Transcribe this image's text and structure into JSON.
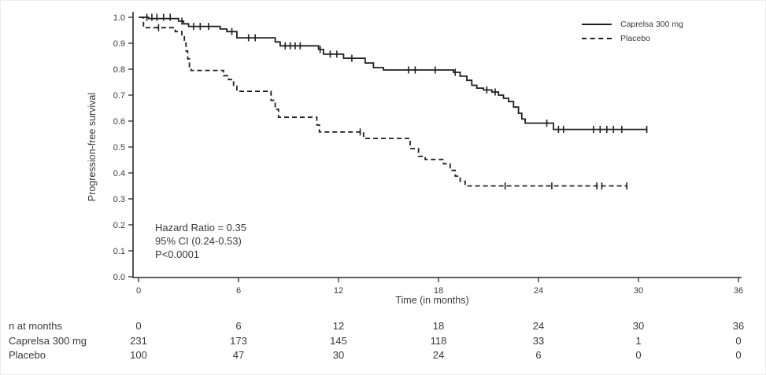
{
  "chart_data": {
    "type": "line",
    "subtype": "kaplan-meier-step",
    "title": "",
    "xlabel": "Time (in months)",
    "ylabel": "Progression-free survival",
    "xlim": [
      0,
      36
    ],
    "ylim": [
      0.0,
      1.0
    ],
    "xticks": [
      0,
      6,
      12,
      18,
      24,
      30,
      36
    ],
    "yticks": [
      "0.0",
      "0.1",
      "0.2",
      "0.3",
      "0.4",
      "0.5",
      "0.6",
      "0.7",
      "0.8",
      "0.9",
      "1.0"
    ],
    "grid": false,
    "legend_position": "top-right",
    "axis_color": "#2b2b2b",
    "text_color": "#3a3a3a",
    "annotations": [
      "Hazard Ratio = 0.35",
      "95% CI (0.24-0.53)",
      "P<0.0001"
    ],
    "series": [
      {
        "name": "Caprelsa 300 mg",
        "line_style": "solid",
        "color": "#1f1f1f",
        "end_time": 30.5,
        "points": [
          [
            0,
            1.0
          ],
          [
            0.6,
            0.995
          ],
          [
            2.4,
            0.985
          ],
          [
            2.7,
            0.975
          ],
          [
            3.0,
            0.965
          ],
          [
            4.9,
            0.955
          ],
          [
            5.3,
            0.945
          ],
          [
            5.9,
            0.921
          ],
          [
            8.2,
            0.905
          ],
          [
            8.5,
            0.89
          ],
          [
            10.8,
            0.876
          ],
          [
            11.1,
            0.858
          ],
          [
            12.3,
            0.842
          ],
          [
            13.6,
            0.824
          ],
          [
            14.1,
            0.806
          ],
          [
            14.7,
            0.797
          ],
          [
            18.9,
            0.788
          ],
          [
            19.3,
            0.773
          ],
          [
            19.7,
            0.757
          ],
          [
            20.0,
            0.738
          ],
          [
            20.3,
            0.727
          ],
          [
            20.7,
            0.72
          ],
          [
            21.2,
            0.712
          ],
          [
            21.6,
            0.7
          ],
          [
            21.9,
            0.688
          ],
          [
            22.2,
            0.675
          ],
          [
            22.5,
            0.654
          ],
          [
            22.8,
            0.63
          ],
          [
            23.0,
            0.608
          ],
          [
            23.2,
            0.592
          ],
          [
            24.9,
            0.568
          ]
        ],
        "censor_marks": [
          [
            0.5,
            1.0
          ],
          [
            0.8,
            1.0
          ],
          [
            1.1,
            1.0
          ],
          [
            1.5,
            1.0
          ],
          [
            1.9,
            1.0
          ],
          [
            2.6,
            0.985
          ],
          [
            3.3,
            0.965
          ],
          [
            3.7,
            0.965
          ],
          [
            4.2,
            0.965
          ],
          [
            5.6,
            0.945
          ],
          [
            6.6,
            0.921
          ],
          [
            7.0,
            0.921
          ],
          [
            8.8,
            0.89
          ],
          [
            9.1,
            0.89
          ],
          [
            9.4,
            0.89
          ],
          [
            9.7,
            0.89
          ],
          [
            10.9,
            0.876
          ],
          [
            11.5,
            0.858
          ],
          [
            11.9,
            0.858
          ],
          [
            12.8,
            0.842
          ],
          [
            16.2,
            0.797
          ],
          [
            16.6,
            0.797
          ],
          [
            17.8,
            0.797
          ],
          [
            19.0,
            0.788
          ],
          [
            20.9,
            0.72
          ],
          [
            21.4,
            0.712
          ],
          [
            24.5,
            0.592
          ],
          [
            25.2,
            0.568
          ],
          [
            25.5,
            0.568
          ],
          [
            27.3,
            0.568
          ],
          [
            27.7,
            0.568
          ],
          [
            28.1,
            0.568
          ],
          [
            28.5,
            0.568
          ],
          [
            29.0,
            0.568
          ],
          [
            30.5,
            0.568
          ]
        ]
      },
      {
        "name": "Placebo",
        "line_style": "dashed",
        "color": "#1f1f1f",
        "end_time": 29.3,
        "points": [
          [
            0.1,
            1.0
          ],
          [
            0.3,
            0.96
          ],
          [
            2.2,
            0.945
          ],
          [
            2.6,
            0.93
          ],
          [
            2.75,
            0.9
          ],
          [
            2.85,
            0.87
          ],
          [
            2.95,
            0.84
          ],
          [
            3.05,
            0.81
          ],
          [
            3.15,
            0.795
          ],
          [
            5.1,
            0.775
          ],
          [
            5.4,
            0.76
          ],
          [
            5.7,
            0.735
          ],
          [
            5.9,
            0.715
          ],
          [
            7.95,
            0.68
          ],
          [
            8.2,
            0.645
          ],
          [
            8.4,
            0.615
          ],
          [
            10.7,
            0.585
          ],
          [
            10.85,
            0.558
          ],
          [
            13.5,
            0.533
          ],
          [
            16.3,
            0.494
          ],
          [
            16.8,
            0.464
          ],
          [
            17.2,
            0.452
          ],
          [
            18.3,
            0.435
          ],
          [
            18.7,
            0.41
          ],
          [
            19.0,
            0.388
          ],
          [
            19.3,
            0.368
          ],
          [
            19.6,
            0.35
          ]
        ],
        "censor_marks": [
          [
            1.2,
            0.96
          ],
          [
            13.3,
            0.558
          ],
          [
            22.0,
            0.35
          ],
          [
            24.8,
            0.35
          ],
          [
            27.5,
            0.35
          ],
          [
            27.8,
            0.35
          ],
          [
            29.3,
            0.35
          ]
        ]
      }
    ]
  },
  "risk_table": {
    "header_label": "n at months",
    "header_values": [
      "0",
      "6",
      "12",
      "18",
      "24",
      "30",
      "36"
    ],
    "rows": [
      {
        "label": "Caprelsa 300 mg",
        "values": [
          "231",
          "173",
          "145",
          "118",
          "33",
          "1",
          "0"
        ]
      },
      {
        "label": "Placebo",
        "values": [
          "100",
          "47",
          "30",
          "24",
          "6",
          "0",
          "0"
        ]
      }
    ]
  }
}
